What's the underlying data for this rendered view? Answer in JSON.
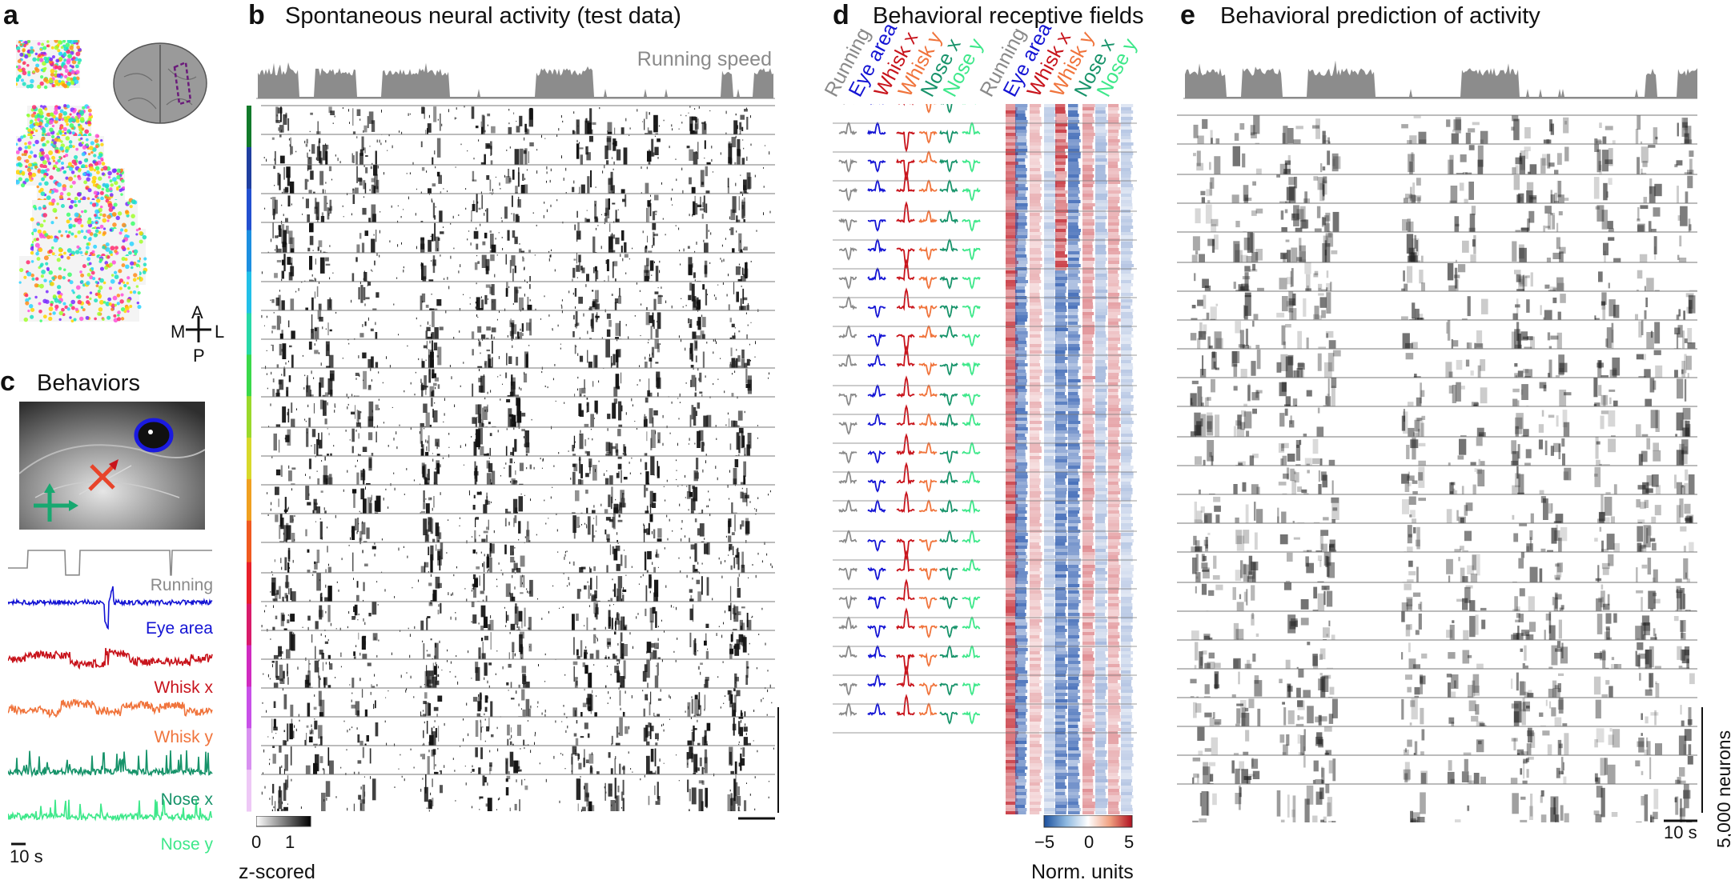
{
  "panels": {
    "a": {
      "letter": "a",
      "orient": {
        "a": "A",
        "p": "P",
        "m": "M",
        "l": "L"
      }
    },
    "b": {
      "letter": "b",
      "title": "Spontaneous neural activity (test data)",
      "running_label": "Running speed",
      "colorbar": {
        "ticks": [
          "0",
          "1"
        ],
        "label": "z-scored"
      }
    },
    "c": {
      "letter": "c",
      "title": "Behaviors",
      "scale": "10 s",
      "traces": [
        {
          "name": "Running",
          "color": "#8a8a8a"
        },
        {
          "name": "Eye area",
          "color": "#1414d4"
        },
        {
          "name": "Whisk x",
          "color": "#c8141c"
        },
        {
          "name": "Whisk y",
          "color": "#f0743c"
        },
        {
          "name": "Nose x",
          "color": "#17936a"
        },
        {
          "name": "Nose y",
          "color": "#3ee88a"
        }
      ]
    },
    "d": {
      "letter": "d",
      "title": "Behavioral receptive fields",
      "columns": [
        "Running",
        "Eye area",
        "Whisk x",
        "Whisk y",
        "Nose x",
        "Nose y"
      ],
      "colorbar": {
        "ticks": [
          "−5",
          "0",
          "5"
        ],
        "label": "Norm. units"
      }
    },
    "e": {
      "letter": "e",
      "title": "Behavioral prediction of activity",
      "scale_time": "10 s",
      "scale_neurons": "5,000 neurons"
    }
  },
  "colors": {
    "running": "#8a8a8a",
    "eye": "#1414d4",
    "whisk_x": "#c8141c",
    "whisk_y": "#f0743c",
    "nose_x": "#17936a",
    "nose_y": "#3ee88a"
  }
}
